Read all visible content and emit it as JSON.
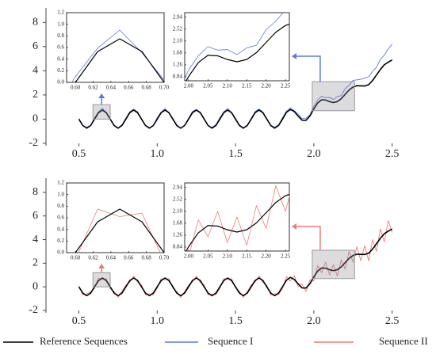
{
  "chart_data": [
    {
      "type": "line",
      "x": [
        0.5,
        0.525,
        0.55,
        0.575,
        0.6,
        0.625,
        0.65,
        0.675,
        0.7,
        0.725,
        0.75,
        0.775,
        0.8,
        0.825,
        0.85,
        0.875,
        0.9,
        0.925,
        0.95,
        0.975,
        1.0,
        1.025,
        1.05,
        1.075,
        1.1,
        1.125,
        1.15,
        1.175,
        1.2,
        1.225,
        1.25,
        1.275,
        1.3,
        1.325,
        1.35,
        1.375,
        1.4,
        1.425,
        1.45,
        1.475,
        1.5,
        1.525,
        1.55,
        1.575,
        1.6,
        1.625,
        1.65,
        1.675,
        1.7,
        1.725,
        1.75,
        1.775,
        1.8,
        1.825,
        1.85,
        1.875,
        1.9,
        1.925,
        1.95,
        1.975,
        2.0,
        2.025,
        2.05,
        2.075,
        2.1,
        2.125,
        2.15,
        2.175,
        2.2,
        2.225,
        2.25,
        2.275,
        2.3,
        2.325,
        2.35,
        2.375,
        2.4,
        2.425,
        2.45,
        2.475,
        2.5
      ],
      "series": [
        {
          "name": "Sequence I",
          "color": "#5b78e6",
          "values": [
            0.05,
            -0.57,
            -0.67,
            -0.51,
            0.1,
            0.59,
            0.9,
            0.51,
            0.04,
            -0.49,
            -0.72,
            -0.46,
            0.08,
            0.62,
            0.82,
            0.6,
            -0.03,
            -0.5,
            -0.7,
            -0.55,
            0.12,
            0.57,
            0.86,
            0.49,
            0.06,
            -0.47,
            -0.73,
            -0.5,
            0.05,
            0.64,
            0.8,
            0.58,
            0.02,
            -0.55,
            -0.68,
            -0.45,
            0.11,
            0.6,
            0.88,
            0.52,
            0.07,
            -0.48,
            -0.71,
            -0.49,
            0.04,
            0.63,
            0.84,
            0.59,
            0.03,
            -0.5,
            -0.66,
            -0.47,
            0.12,
            0.66,
            0.93,
            0.7,
            0.4,
            0.05,
            0.08,
            0.35,
            1.08,
            1.58,
            1.9,
            1.78,
            1.8,
            1.62,
            1.86,
            1.95,
            2.5,
            2.8,
            3.2,
            3.25,
            3.3,
            3.4,
            3.5,
            3.95,
            4.3,
            4.95,
            5.3,
            5.8,
            6.2
          ]
        },
        {
          "name": "Reference Sequences",
          "color": "#000000",
          "values": [
            0,
            -0.53,
            -0.75,
            -0.53,
            0,
            0.53,
            0.75,
            0.53,
            0,
            -0.53,
            -0.75,
            -0.53,
            0,
            0.53,
            0.75,
            0.53,
            0,
            -0.53,
            -0.75,
            -0.53,
            0,
            0.53,
            0.75,
            0.53,
            0,
            -0.53,
            -0.75,
            -0.53,
            0,
            0.53,
            0.75,
            0.53,
            0,
            -0.53,
            -0.75,
            -0.53,
            0,
            0.53,
            0.75,
            0.53,
            0,
            -0.53,
            -0.75,
            -0.53,
            0,
            0.53,
            0.75,
            0.53,
            0,
            -0.53,
            -0.75,
            -0.53,
            0,
            0.56,
            0.8,
            0.63,
            0.25,
            -0.09,
            -0.1,
            0.26,
            0.85,
            1.34,
            1.6,
            1.58,
            1.45,
            1.37,
            1.45,
            1.69,
            2.05,
            2.41,
            2.65,
            2.76,
            2.75,
            2.74,
            2.85,
            3.19,
            3.65,
            4.11,
            4.5,
            4.71,
            4.9
          ]
        }
      ],
      "xlim": [
        0.3,
        2.78
      ],
      "ylim": [
        -2.2,
        9.2
      ],
      "xticks": [
        0.5,
        {
          "value": 1.0,
          "label": "1.0"
        },
        1.5,
        {
          "value": 2.0,
          "label": "2.0"
        },
        2.5
      ],
      "yticks": [
        -2,
        0,
        2,
        4,
        6,
        8
      ],
      "insets": [
        {
          "xlim": [
            0.59,
            0.7
          ],
          "ylim": [
            0,
            1.2
          ],
          "xticks": [
            {
              "value": 0.6,
              "label": "0.60"
            },
            0.62,
            0.64,
            0.66,
            0.68,
            {
              "value": 0.7,
              "label": "0.70"
            }
          ],
          "yticks": [
            {
              "value": 0,
              "label": "0.0"
            },
            0.2,
            0.4,
            0.6,
            0.8,
            {
              "value": 1.0,
              "label": "1.0"
            },
            1.2
          ]
        },
        {
          "xlim": [
            1.99,
            2.26
          ],
          "ylim": [
            0.7,
            3.1
          ],
          "xticks": [
            {
              "value": 2.0,
              "label": "2.00"
            },
            2.05,
            {
              "value": 2.1,
              "label": "2.10"
            },
            2.15,
            {
              "value": 2.2,
              "label": "2.20"
            },
            2.25
          ],
          "yticks": [
            0.84,
            1.26,
            1.68,
            {
              "value": 2.1,
              "label": "2.10"
            },
            2.52,
            2.94
          ]
        }
      ]
    },
    {
      "type": "line",
      "x": [
        0.5,
        0.525,
        0.55,
        0.575,
        0.6,
        0.625,
        0.65,
        0.675,
        0.7,
        0.725,
        0.75,
        0.775,
        0.8,
        0.825,
        0.85,
        0.875,
        0.9,
        0.925,
        0.95,
        0.975,
        1.0,
        1.025,
        1.05,
        1.075,
        1.1,
        1.125,
        1.15,
        1.175,
        1.2,
        1.225,
        1.25,
        1.275,
        1.3,
        1.325,
        1.35,
        1.375,
        1.4,
        1.425,
        1.45,
        1.475,
        1.5,
        1.525,
        1.55,
        1.575,
        1.6,
        1.625,
        1.65,
        1.675,
        1.7,
        1.725,
        1.75,
        1.775,
        1.8,
        1.825,
        1.85,
        1.875,
        1.9,
        1.925,
        1.95,
        1.975,
        2.0,
        2.025,
        2.05,
        2.075,
        2.1,
        2.125,
        2.15,
        2.175,
        2.2,
        2.225,
        2.25,
        2.275,
        2.3,
        2.325,
        2.35,
        2.375,
        2.4,
        2.425,
        2.45,
        2.475,
        2.5
      ],
      "series": [
        {
          "name": "Sequence II",
          "color": "#f07a78",
          "values": [
            0.1,
            -0.7,
            -0.6,
            -0.42,
            -0.12,
            0.75,
            0.62,
            0.68,
            -0.14,
            -0.4,
            -0.88,
            -0.38,
            0.15,
            0.4,
            0.92,
            0.41,
            0.13,
            -0.66,
            -0.6,
            -0.68,
            -0.1,
            0.68,
            0.6,
            0.7,
            -0.12,
            -0.4,
            -0.9,
            -0.4,
            0.16,
            0.42,
            0.9,
            0.38,
            0.14,
            -0.68,
            -0.62,
            -0.66,
            -0.14,
            0.7,
            0.64,
            0.68,
            -0.1,
            -0.38,
            -0.88,
            -0.42,
            0.15,
            0.4,
            0.94,
            0.4,
            0.12,
            -0.7,
            -0.6,
            -0.65,
            -0.12,
            0.85,
            0.5,
            0.95,
            0.02,
            0.25,
            -0.4,
            0.6,
            0.5,
            1.8,
            1.2,
            2.1,
            1.0,
            1.9,
            0.9,
            2.3,
            1.5,
            3.0,
            2.1,
            3.4,
            2.2,
            3.5,
            2.2,
            4.0,
            3.0,
            4.9,
            3.8,
            5.6,
            4.6
          ]
        },
        {
          "name": "Reference Sequences",
          "color": "#000000",
          "values": [
            0,
            -0.53,
            -0.75,
            -0.53,
            0,
            0.53,
            0.75,
            0.53,
            0,
            -0.53,
            -0.75,
            -0.53,
            0,
            0.53,
            0.75,
            0.53,
            0,
            -0.53,
            -0.75,
            -0.53,
            0,
            0.53,
            0.75,
            0.53,
            0,
            -0.53,
            -0.75,
            -0.53,
            0,
            0.53,
            0.75,
            0.53,
            0,
            -0.53,
            -0.75,
            -0.53,
            0,
            0.53,
            0.75,
            0.53,
            0,
            -0.53,
            -0.75,
            -0.53,
            0,
            0.53,
            0.75,
            0.53,
            0,
            -0.53,
            -0.75,
            -0.53,
            0,
            0.56,
            0.8,
            0.63,
            0.25,
            -0.09,
            -0.1,
            0.26,
            0.85,
            1.34,
            1.6,
            1.58,
            1.45,
            1.37,
            1.45,
            1.69,
            2.05,
            2.41,
            2.65,
            2.76,
            2.75,
            2.74,
            2.85,
            3.19,
            3.65,
            4.11,
            4.5,
            4.71,
            4.9
          ]
        }
      ],
      "xlim": [
        0.3,
        2.78
      ],
      "ylim": [
        -2.2,
        9.2
      ],
      "xticks": [
        0.5,
        {
          "value": 1.0,
          "label": "1.0"
        },
        1.5,
        {
          "value": 2.0,
          "label": "2.0"
        },
        2.5
      ],
      "yticks": [
        -2,
        0,
        2,
        4,
        6,
        8
      ],
      "insets": [
        {
          "xlim": [
            0.59,
            0.7
          ],
          "ylim": [
            0,
            1.2
          ],
          "xticks": [
            {
              "value": 0.6,
              "label": "0.60"
            },
            0.62,
            0.64,
            0.66,
            0.68,
            {
              "value": 0.7,
              "label": "0.70"
            }
          ],
          "yticks": [
            {
              "value": 0,
              "label": "0.0"
            },
            0.2,
            0.4,
            0.6,
            0.8,
            {
              "value": 1.0,
              "label": "1.0"
            },
            1.2
          ]
        },
        {
          "xlim": [
            1.99,
            2.26
          ],
          "ylim": [
            0.7,
            3.1
          ],
          "xticks": [
            {
              "value": 2.0,
              "label": "2.00"
            },
            2.05,
            {
              "value": 2.1,
              "label": "2.10"
            },
            2.15,
            {
              "value": 2.2,
              "label": "2.20"
            },
            2.25
          ],
          "yticks": [
            0.84,
            1.26,
            1.68,
            {
              "value": 2.1,
              "label": "2.10"
            },
            2.52,
            2.94
          ]
        }
      ]
    }
  ]
}
